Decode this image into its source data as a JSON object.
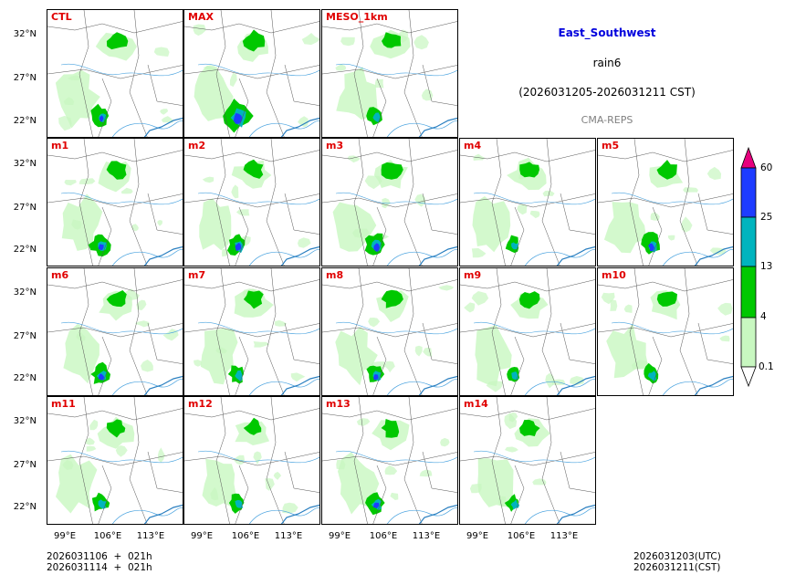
{
  "header": {
    "region": "East_Southwest",
    "variable": "rain6",
    "period": "(2026031205-2026031211 CST)",
    "model": "CMA-REPS"
  },
  "panels": [
    {
      "label": "CTL",
      "intensity": 0.9
    },
    {
      "label": "MAX",
      "intensity": 1.4
    },
    {
      "label": "MESO_1km",
      "intensity": 0.8
    },
    {
      "label": "m1",
      "intensity": 1.0
    },
    {
      "label": "m2",
      "intensity": 1.0
    },
    {
      "label": "m3",
      "intensity": 1.0
    },
    {
      "label": "m4",
      "intensity": 0.7
    },
    {
      "label": "m5",
      "intensity": 1.0
    },
    {
      "label": "m6",
      "intensity": 0.9
    },
    {
      "label": "m7",
      "intensity": 0.8
    },
    {
      "label": "m8",
      "intensity": 0.9
    },
    {
      "label": "m9",
      "intensity": 0.8
    },
    {
      "label": "m10",
      "intensity": 0.8
    },
    {
      "label": "m11",
      "intensity": 0.8
    },
    {
      "label": "m12",
      "intensity": 0.8
    },
    {
      "label": "m13",
      "intensity": 0.9
    },
    {
      "label": "m14",
      "intensity": 0.7
    }
  ],
  "axes": {
    "lat_ticks": [
      "32°N",
      "27°N",
      "22°N"
    ],
    "lon_ticks": [
      "99°E",
      "106°E",
      "113°E"
    ]
  },
  "colorbar": {
    "levels": [
      "0.1",
      "4",
      "13",
      "25",
      "60"
    ],
    "colors": [
      "#ffffff",
      "#c8f7c0",
      "#00c800",
      "#00b4be",
      "#1e3cff",
      "#e6007e"
    ]
  },
  "footer": {
    "init_line": "2026031106  +  021h",
    "init_line_cst": "2026031114  +  021h",
    "valid_utc": "2026031203(UTC)",
    "valid_cst": "2026031211(CST)"
  },
  "colors": {
    "label": "#e00000",
    "region": "#0000dd",
    "border": "#555555",
    "river": "#4aa3df"
  }
}
